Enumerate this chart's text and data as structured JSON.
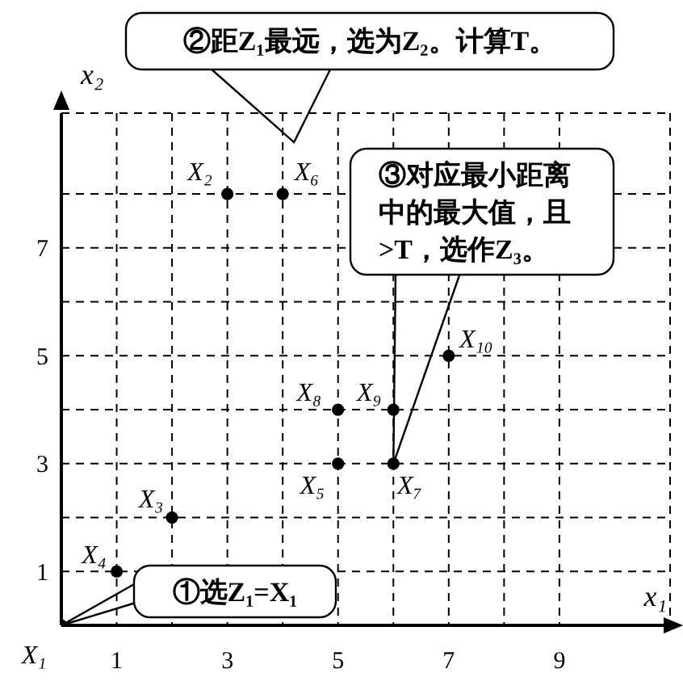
{
  "chart_data": {
    "type": "scatter",
    "xlabel": "x₁",
    "ylabel": "x₂",
    "x": [
      0,
      3,
      2,
      1,
      5,
      4,
      6,
      5,
      6,
      7
    ],
    "series": [
      {
        "color": "#000000",
        "values": [
          0,
          8,
          2,
          1,
          3,
          8,
          3,
          4,
          4,
          5
        ]
      }
    ],
    "xlim": [
      0,
      11
    ],
    "ylim": [
      0,
      9.5
    ],
    "xticks": [
      1,
      {
        "value": 2,
        "label": null
      },
      3,
      {
        "value": 4,
        "label": null
      },
      5,
      {
        "value": 6,
        "label": null
      },
      7,
      {
        "value": 8,
        "label": null
      },
      9
    ],
    "yticks": [
      1,
      {
        "value": 2,
        "label": null
      },
      3,
      {
        "value": 4,
        "label": null
      },
      5,
      {
        "value": 6,
        "label": null
      },
      7,
      {
        "value": 8,
        "label": null
      }
    ],
    "grid": true,
    "marker": "circle",
    "annotations": [
      {
        "text": "X₁",
        "x": 0,
        "y": 0
      },
      {
        "text": "X₂",
        "x": 3,
        "y": 8
      },
      {
        "text": "X₃",
        "x": 2,
        "y": 2
      },
      {
        "text": "X₄",
        "x": 1,
        "y": 1
      },
      {
        "text": "X₅",
        "x": 5,
        "y": 3
      },
      {
        "text": "X₆",
        "x": 4,
        "y": 8
      },
      {
        "text": "X₇",
        "x": 6,
        "y": 3
      },
      {
        "text": "X₈",
        "x": 5,
        "y": 4
      },
      {
        "text": "X₉",
        "x": 6,
        "y": 4
      },
      {
        "text": "X₁₀",
        "x": 7,
        "y": 5
      },
      "①选Z₁=X₁",
      "②距Z₁最远，选为Z₂。计算T。",
      "③对应最小距离中的最大值，且>T，选作Z₃。"
    ]
  }
}
